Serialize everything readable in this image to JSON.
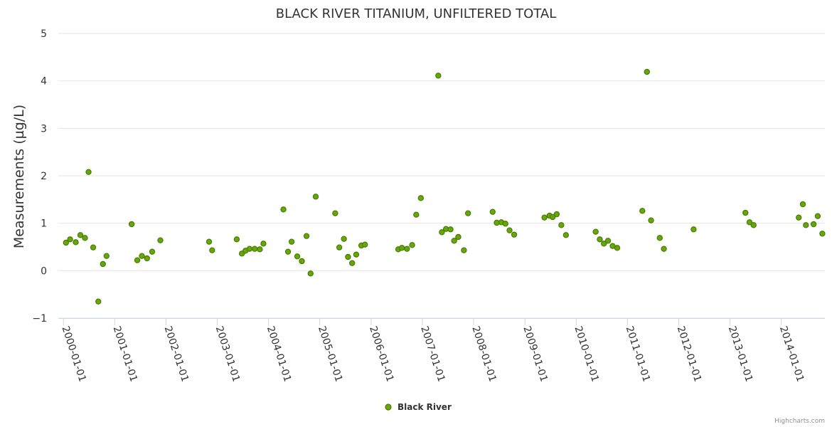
{
  "chart_data": {
    "type": "scatter",
    "title": "BLACK RIVER TITANIUM, UNFILTERED TOTAL",
    "xlabel": "",
    "ylabel": "Measurements (µg/L)",
    "ylim": [
      -1,
      5
    ],
    "y_ticks": [
      "−1",
      "0",
      "1",
      "2",
      "3",
      "4",
      "5"
    ],
    "y_tick_values": [
      -1,
      0,
      1,
      2,
      3,
      4,
      5
    ],
    "x_ticks": [
      "2000-01-01",
      "2001-01-01",
      "2002-01-01",
      "2003-01-01",
      "2004-01-01",
      "2005-01-01",
      "2006-01-01",
      "2007-01-01",
      "2008-01-01",
      "2009-01-01",
      "2010-01-01",
      "2011-01-01",
      "2012-01-01",
      "2013-01-01",
      "2014-01-01"
    ],
    "x_tick_values": [
      2000,
      2001,
      2002,
      2003,
      2004,
      2005,
      2006,
      2007,
      2008,
      2009,
      2010,
      2011,
      2012,
      2013,
      2014
    ],
    "xlim": [
      1999.9,
      2014.85
    ],
    "grid": true,
    "legend_position": "bottom-center",
    "colors": {
      "marker_fill": "#66a80a",
      "marker_stroke": "#4a7a06",
      "grid": "#e6e6e6",
      "axis": "#ccd6eb"
    },
    "series": [
      {
        "name": "Black River",
        "points": [
          [
            2000.05,
            0.59
          ],
          [
            2000.13,
            0.66
          ],
          [
            2000.24,
            0.6
          ],
          [
            2000.33,
            0.75
          ],
          [
            2000.42,
            0.69
          ],
          [
            2000.49,
            2.08
          ],
          [
            2000.58,
            0.49
          ],
          [
            2000.68,
            -0.65
          ],
          [
            2000.77,
            0.14
          ],
          [
            2000.84,
            0.31
          ],
          [
            2001.33,
            0.98
          ],
          [
            2001.44,
            0.22
          ],
          [
            2001.53,
            0.31
          ],
          [
            2001.63,
            0.26
          ],
          [
            2001.73,
            0.4
          ],
          [
            2001.89,
            0.64
          ],
          [
            2002.84,
            0.61
          ],
          [
            2002.9,
            0.43
          ],
          [
            2003.38,
            0.66
          ],
          [
            2003.48,
            0.36
          ],
          [
            2003.55,
            0.42
          ],
          [
            2003.63,
            0.46
          ],
          [
            2003.73,
            0.46
          ],
          [
            2003.83,
            0.45
          ],
          [
            2003.9,
            0.57
          ],
          [
            2004.29,
            1.29
          ],
          [
            2004.38,
            0.4
          ],
          [
            2004.45,
            0.61
          ],
          [
            2004.56,
            0.3
          ],
          [
            2004.65,
            0.2
          ],
          [
            2004.74,
            0.73
          ],
          [
            2004.82,
            -0.06
          ],
          [
            2004.92,
            1.56
          ],
          [
            2005.3,
            1.21
          ],
          [
            2005.38,
            0.49
          ],
          [
            2005.47,
            0.67
          ],
          [
            2005.55,
            0.29
          ],
          [
            2005.63,
            0.16
          ],
          [
            2005.71,
            0.34
          ],
          [
            2005.81,
            0.53
          ],
          [
            2005.88,
            0.55
          ],
          [
            2006.53,
            0.45
          ],
          [
            2006.6,
            0.48
          ],
          [
            2006.7,
            0.46
          ],
          [
            2006.8,
            0.54
          ],
          [
            2006.88,
            1.18
          ],
          [
            2006.97,
            1.53
          ],
          [
            2007.31,
            4.11
          ],
          [
            2007.38,
            0.81
          ],
          [
            2007.46,
            0.88
          ],
          [
            2007.55,
            0.87
          ],
          [
            2007.62,
            0.63
          ],
          [
            2007.7,
            0.71
          ],
          [
            2007.81,
            0.43
          ],
          [
            2007.89,
            1.21
          ],
          [
            2008.37,
            1.24
          ],
          [
            2008.45,
            1.01
          ],
          [
            2008.54,
            1.02
          ],
          [
            2008.62,
            0.99
          ],
          [
            2008.7,
            0.85
          ],
          [
            2008.79,
            0.76
          ],
          [
            2009.38,
            1.12
          ],
          [
            2009.48,
            1.16
          ],
          [
            2009.54,
            1.13
          ],
          [
            2009.62,
            1.19
          ],
          [
            2009.71,
            0.96
          ],
          [
            2009.8,
            0.75
          ],
          [
            2010.38,
            0.82
          ],
          [
            2010.46,
            0.66
          ],
          [
            2010.54,
            0.57
          ],
          [
            2010.62,
            0.63
          ],
          [
            2010.71,
            0.52
          ],
          [
            2010.8,
            0.48
          ],
          [
            2011.29,
            1.26
          ],
          [
            2011.38,
            4.19
          ],
          [
            2011.46,
            1.06
          ],
          [
            2011.63,
            0.69
          ],
          [
            2011.71,
            0.46
          ],
          [
            2012.29,
            0.87
          ],
          [
            2013.3,
            1.22
          ],
          [
            2013.38,
            1.02
          ],
          [
            2013.46,
            0.96
          ],
          [
            2014.34,
            1.12
          ],
          [
            2014.42,
            1.4
          ],
          [
            2014.48,
            0.96
          ],
          [
            2014.63,
            0.98
          ],
          [
            2014.71,
            1.15
          ],
          [
            2014.8,
            0.78
          ]
        ]
      }
    ]
  },
  "credits": "Highcharts.com"
}
